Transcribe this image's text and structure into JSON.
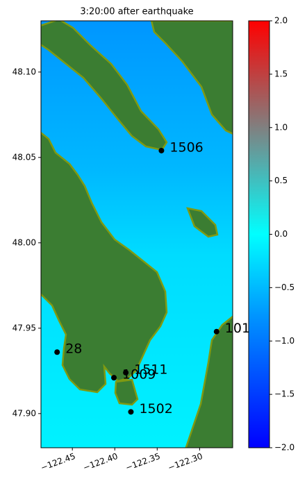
{
  "chart_data": {
    "type": "map",
    "title": "3:20:00 after earthquake",
    "xlim": [
      -122.487,
      -122.261
    ],
    "ylim": [
      47.88,
      48.13
    ],
    "xticks": [
      {
        "value": -122.45,
        "label": "−122.45"
      },
      {
        "value": -122.4,
        "label": "−122.40"
      },
      {
        "value": -122.35,
        "label": "−122.35"
      },
      {
        "value": -122.3,
        "label": "−122.30"
      }
    ],
    "yticks": [
      {
        "value": 48.1,
        "label": "48.10"
      },
      48.05,
      {
        "value": 48.0,
        "label": "48.00"
      },
      47.95,
      {
        "value": 47.9,
        "label": "47.90"
      }
    ],
    "clim": [
      -2,
      2
    ],
    "cticks": [
      {
        "value": -2,
        "label": "−2.0"
      },
      {
        "value": -1.5,
        "label": "−1.5"
      },
      {
        "value": -1,
        "label": "−1.0"
      },
      {
        "value": -0.5,
        "label": "−0.5"
      },
      {
        "value": 0,
        "label": "0.0"
      },
      0.5,
      {
        "value": 1,
        "label": "1.0"
      },
      1.5,
      {
        "value": 2,
        "label": "2.0"
      }
    ],
    "gauges": [
      {
        "label": "1506",
        "lon": -122.345,
        "lat": 48.054
      },
      {
        "label": "101",
        "lon": -122.28,
        "lat": 47.948
      },
      {
        "label": "28",
        "lon": -122.468,
        "lat": 47.936
      },
      {
        "label": "1511",
        "lon": -122.387,
        "lat": 47.924
      },
      {
        "label": "1009",
        "lon": -122.401,
        "lat": 47.921
      },
      {
        "label": "1502",
        "lon": -122.381,
        "lat": 47.901
      }
    ]
  }
}
